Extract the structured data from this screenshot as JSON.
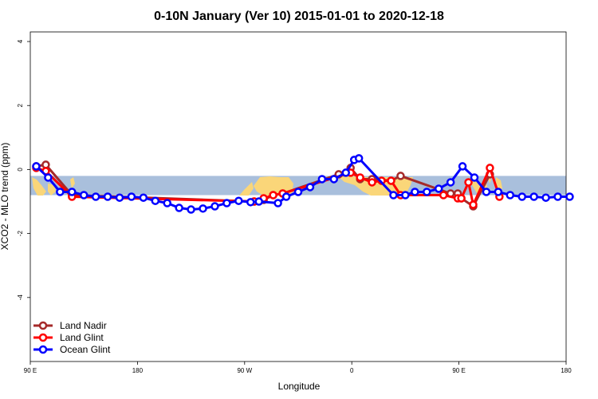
{
  "chart_data": {
    "type": "line",
    "title": "0-10N January (Ver 10)   2015-01-01 to 2020-12-18",
    "xlabel": "Longitude",
    "ylabel": "XCO2 - MLO trend (ppm)",
    "xlim": [
      90,
      540
    ],
    "ylim": [
      -6,
      4.3
    ],
    "x_ticks": [
      {
        "value": 90,
        "label": "90 E"
      },
      {
        "value": 180,
        "label": "180"
      },
      {
        "value": 270,
        "label": "90 W"
      },
      {
        "value": 360,
        "label": "0"
      },
      {
        "value": 450,
        "label": "90 E"
      },
      {
        "value": 540,
        "label": "180"
      }
    ],
    "y_ticks": [
      {
        "value": -4,
        "label": "-4"
      },
      {
        "value": -2,
        "label": "-2"
      },
      {
        "value": 0,
        "label": "0"
      },
      {
        "value": 2,
        "label": "2"
      },
      {
        "value": 4,
        "label": "4"
      }
    ],
    "band": {
      "y_from": -0.8,
      "y_to": -0.2,
      "color": "#a9bfdc",
      "land_color": "#fad679"
    },
    "legend_position": "bottom-left",
    "series": [
      {
        "name": "Land Nadir",
        "color": "#a52a2a",
        "x": [
          95,
          103,
          125,
          278,
          286,
          294,
          302,
          349,
          359,
          367,
          377,
          393,
          401,
          443,
          449,
          452,
          462,
          476
        ],
        "y": [
          0.1,
          0.15,
          -0.8,
          -1.0,
          -0.95,
          -0.8,
          -0.75,
          -0.15,
          0.05,
          -0.3,
          -0.3,
          -0.35,
          -0.2,
          -0.75,
          -0.75,
          -0.9,
          -1.15,
          -0.15
        ]
      },
      {
        "name": "Land Glint",
        "color": "#ff0000",
        "x": [
          95,
          103,
          125,
          278,
          286,
          294,
          302,
          359,
          367,
          377,
          385,
          393,
          401,
          437,
          449,
          452,
          458,
          462,
          476,
          484
        ],
        "y": [
          0.05,
          -0.05,
          -0.85,
          -1.0,
          -0.9,
          -0.8,
          -0.75,
          -0.1,
          -0.25,
          -0.4,
          -0.35,
          -0.35,
          -0.8,
          -0.8,
          -0.9,
          -0.9,
          -0.4,
          -1.1,
          0.05,
          -0.85
        ]
      },
      {
        "name": "Ocean Glint",
        "color": "#0000ff",
        "x": [
          95,
          105,
          115,
          125,
          135,
          145,
          155,
          165,
          175,
          185,
          195,
          205,
          215,
          225,
          235,
          245,
          255,
          265,
          275,
          282,
          298,
          305,
          315,
          325,
          335,
          345,
          355,
          362,
          366,
          395,
          405,
          413,
          423,
          433,
          443,
          453,
          463,
          473,
          483,
          493,
          503,
          513,
          523,
          533,
          543
        ],
        "y": [
          0.1,
          -0.25,
          -0.7,
          -0.7,
          -0.8,
          -0.85,
          -0.85,
          -0.88,
          -0.85,
          -0.88,
          -0.98,
          -1.05,
          -1.2,
          -1.25,
          -1.22,
          -1.15,
          -1.05,
          -0.98,
          -1.02,
          -1.0,
          -1.05,
          -0.85,
          -0.7,
          -0.55,
          -0.3,
          -0.3,
          -0.1,
          0.3,
          0.35,
          -0.8,
          -0.8,
          -0.7,
          -0.7,
          -0.6,
          -0.4,
          0.1,
          -0.25,
          -0.7,
          -0.7,
          -0.8,
          -0.85,
          -0.85,
          -0.88,
          -0.85,
          -0.85
        ]
      }
    ]
  }
}
